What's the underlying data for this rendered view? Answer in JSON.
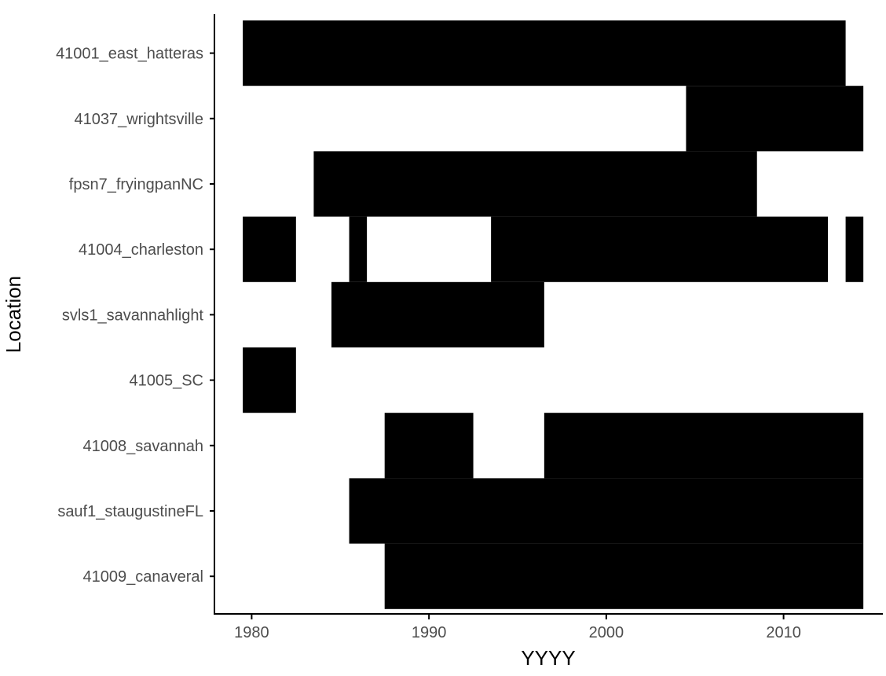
{
  "chart_data": {
    "type": "bar",
    "orientation": "horizontal-ranges",
    "xlabel": "YYYY",
    "ylabel": "Location",
    "xlim": [
      1977.9,
      2015.6
    ],
    "x_ticks": [
      {
        "value": 1980,
        "label": "1980"
      },
      {
        "value": 1990,
        "label": "1990"
      },
      {
        "value": 2000,
        "label": "2000"
      },
      {
        "value": 2010,
        "label": "2010"
      }
    ],
    "grid": false,
    "legend": "none",
    "bar_color": "#000000",
    "categories": [
      {
        "name": "41001_east_hatteras",
        "ranges": [
          [
            1980,
            2013
          ]
        ]
      },
      {
        "name": "41037_wrightsville",
        "ranges": [
          [
            2005,
            2014
          ]
        ]
      },
      {
        "name": "fpsn7_fryingpanNC",
        "ranges": [
          [
            1984,
            2008
          ]
        ]
      },
      {
        "name": "41004_charleston",
        "ranges": [
          [
            1980,
            1982
          ],
          [
            1986,
            1986
          ],
          [
            1994,
            2012
          ],
          [
            2014,
            2014
          ]
        ]
      },
      {
        "name": "svls1_savannahlight",
        "ranges": [
          [
            1985,
            1996
          ]
        ]
      },
      {
        "name": "41005_SC",
        "ranges": [
          [
            1980,
            1982
          ]
        ]
      },
      {
        "name": "41008_savannah",
        "ranges": [
          [
            1988,
            1992
          ],
          [
            1997,
            2014
          ]
        ]
      },
      {
        "name": "sauf1_staugustineFL",
        "ranges": [
          [
            1986,
            2014
          ]
        ]
      },
      {
        "name": "41009_canaveral",
        "ranges": [
          [
            1988,
            2014
          ]
        ]
      }
    ]
  }
}
